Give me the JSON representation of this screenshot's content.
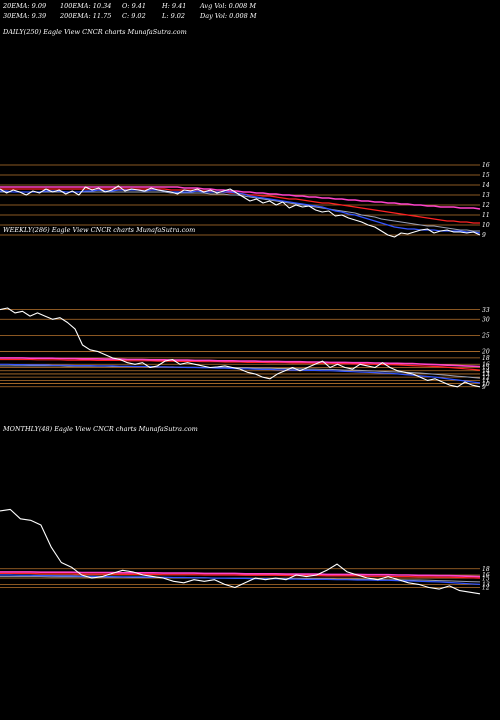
{
  "header": {
    "ema20": "20EMA: 9.09",
    "ema100": "100EMA: 10.34",
    "open": "O: 9.41",
    "high": "H: 9.41",
    "avg_vol": "Avg Vol: 0.008 M",
    "ema30": "30EMA: 9.39",
    "ema200": "200EMA: 11.75",
    "close": "C: 9.02",
    "low": "L: 9.02",
    "day_vol": "Day Vol: 0.008 M"
  },
  "colors": {
    "background": "#000000",
    "price": "#ffffff",
    "ema_short": "#3355ff",
    "ema_mid": "#9aa0b4",
    "ema_long": "#ff44cc",
    "ema_red": "#ff2222",
    "grid": "#b8742e"
  },
  "chart_data": [
    {
      "type": "line",
      "title": "DAILY(250) Eagle  View  CNCR charts MunafaSutra.com",
      "y_ticks": [
        "16",
        "15",
        "14",
        "13",
        "12",
        "11",
        "10",
        "9"
      ],
      "ylim": [
        8.5,
        16.5
      ],
      "series": [
        {
          "role": "price",
          "values": [
            13.6,
            13.2,
            13.5,
            13.3,
            13.0,
            13.4,
            13.2,
            13.6,
            13.3,
            13.5,
            13.1,
            13.4,
            13.0,
            13.8,
            13.5,
            13.7,
            13.3,
            13.5,
            13.9,
            13.4,
            13.6,
            13.5,
            13.4,
            13.7,
            13.5,
            13.4,
            13.3,
            13.1,
            13.5,
            13.4,
            13.6,
            13.3,
            13.5,
            13.2,
            13.4,
            13.6,
            13.2,
            12.8,
            12.4,
            12.6,
            12.2,
            12.4,
            12.0,
            12.3,
            11.7,
            12.0,
            11.8,
            11.9,
            11.5,
            11.3,
            11.4,
            10.9,
            11.0,
            10.7,
            10.5,
            10.3,
            10.0,
            9.8,
            9.4,
            9.0,
            8.8,
            9.2,
            9.1,
            9.3,
            9.5,
            9.6,
            9.2,
            9.4,
            9.5,
            9.3,
            9.3,
            9.2,
            9.3,
            9.0
          ]
        },
        {
          "role": "ema-short",
          "values": [
            13.4,
            13.4,
            13.3,
            13.3,
            13.3,
            13.3,
            13.3,
            13.4,
            13.4,
            13.4,
            13.3,
            13.3,
            13.3,
            13.4,
            13.4,
            13.5,
            13.4,
            13.4,
            13.5,
            13.5,
            13.5,
            13.5,
            13.4,
            13.5,
            13.5,
            13.4,
            13.3,
            13.3,
            13.3,
            13.3,
            13.4,
            13.3,
            13.3,
            13.3,
            13.3,
            13.3,
            13.2,
            13.1,
            12.9,
            12.8,
            12.7,
            12.6,
            12.5,
            12.4,
            12.3,
            12.2,
            12.1,
            12.0,
            11.9,
            11.8,
            11.6,
            11.4,
            11.3,
            11.1,
            11.0,
            10.8,
            10.6,
            10.4,
            10.2,
            10.0,
            9.8,
            9.7,
            9.6,
            9.6,
            9.5,
            9.5,
            9.5,
            9.4,
            9.4,
            9.4,
            9.4,
            9.3,
            9.3,
            9.2
          ]
        },
        {
          "role": "ema-mid",
          "values": [
            13.3,
            13.3,
            13.3,
            13.3,
            13.3,
            13.3,
            13.3,
            13.3,
            13.3,
            13.3,
            13.3,
            13.3,
            13.3,
            13.3,
            13.3,
            13.3,
            13.3,
            13.3,
            13.3,
            13.3,
            13.3,
            13.3,
            13.3,
            13.3,
            13.3,
            13.3,
            13.2,
            13.2,
            13.2,
            13.2,
            13.2,
            13.2,
            13.1,
            13.1,
            13.1,
            13.0,
            13.0,
            12.9,
            12.8,
            12.7,
            12.6,
            12.5,
            12.4,
            12.3,
            12.2,
            12.1,
            12.0,
            11.9,
            11.8,
            11.7,
            11.6,
            11.5,
            11.4,
            11.3,
            11.2,
            11.0,
            10.9,
            10.8,
            10.6,
            10.5,
            10.4,
            10.3,
            10.2,
            10.1,
            10.0,
            9.9,
            9.9,
            9.8,
            9.7,
            9.6,
            9.5,
            9.5,
            9.4,
            9.4
          ]
        },
        {
          "role": "ema-long",
          "values": [
            13.8,
            13.8,
            13.8,
            13.8,
            13.8,
            13.8,
            13.8,
            13.8,
            13.8,
            13.8,
            13.8,
            13.8,
            13.8,
            13.8,
            13.8,
            13.8,
            13.8,
            13.8,
            13.8,
            13.8,
            13.8,
            13.8,
            13.8,
            13.8,
            13.8,
            13.8,
            13.8,
            13.8,
            13.7,
            13.7,
            13.7,
            13.6,
            13.6,
            13.5,
            13.5,
            13.4,
            13.4,
            13.3,
            13.3,
            13.2,
            13.2,
            13.1,
            13.1,
            13.0,
            13.0,
            12.9,
            12.9,
            12.8,
            12.8,
            12.7,
            12.7,
            12.6,
            12.6,
            12.5,
            12.5,
            12.4,
            12.4,
            12.3,
            12.3,
            12.2,
            12.2,
            12.1,
            12.1,
            12.0,
            12.0,
            11.9,
            11.9,
            11.8,
            11.8,
            11.8,
            11.7,
            11.7,
            11.7,
            11.6
          ]
        },
        {
          "role": "ema-red",
          "values": [
            13.6,
            13.6,
            13.6,
            13.6,
            13.6,
            13.6,
            13.6,
            13.6,
            13.6,
            13.6,
            13.6,
            13.6,
            13.6,
            13.6,
            13.6,
            13.6,
            13.6,
            13.6,
            13.6,
            13.6,
            13.6,
            13.6,
            13.6,
            13.6,
            13.6,
            13.6,
            13.5,
            13.5,
            13.5,
            13.5,
            13.5,
            13.4,
            13.4,
            13.3,
            13.3,
            13.2,
            13.2,
            13.1,
            13.0,
            13.0,
            12.9,
            12.9,
            12.8,
            12.7,
            12.6,
            12.6,
            12.5,
            12.4,
            12.3,
            12.2,
            12.2,
            12.1,
            12.0,
            11.9,
            11.8,
            11.7,
            11.6,
            11.5,
            11.4,
            11.3,
            11.2,
            11.1,
            11.0,
            10.9,
            10.8,
            10.7,
            10.6,
            10.5,
            10.4,
            10.4,
            10.3,
            10.3,
            10.2,
            10.2
          ]
        }
      ]
    },
    {
      "type": "line",
      "title": "WEEKLY(286) Eagle  View  CNCR charts MunafaSutra.com",
      "y_ticks": [
        "33",
        "30",
        "25",
        "20",
        "18",
        "16",
        "15",
        "14",
        "13",
        "12",
        "11",
        "10",
        "9"
      ],
      "ylim": [
        8,
        36
      ],
      "series": [
        {
          "role": "price",
          "values": [
            33.0,
            33.5,
            32.0,
            32.5,
            31.0,
            32.0,
            31.0,
            30.0,
            30.5,
            29.0,
            27.0,
            22.0,
            20.5,
            20.0,
            19.0,
            18.0,
            17.5,
            16.5,
            16.0,
            16.5,
            15.0,
            15.5,
            17.0,
            17.5,
            16.0,
            16.5,
            16.0,
            15.5,
            15.0,
            15.2,
            15.5,
            15.0,
            14.5,
            13.5,
            13.0,
            12.0,
            11.5,
            13.0,
            14.0,
            15.0,
            14.0,
            15.0,
            16.0,
            17.0,
            15.0,
            16.0,
            15.0,
            14.5,
            16.0,
            15.5,
            15.0,
            16.5,
            15.0,
            14.0,
            13.5,
            13.0,
            12.0,
            11.0,
            11.5,
            10.5,
            9.5,
            9.0,
            10.5,
            9.5,
            9.0
          ]
        },
        {
          "role": "ema-short",
          "values": [
            16.0,
            16.0,
            15.9,
            15.9,
            15.8,
            15.8,
            15.8,
            15.7,
            15.7,
            15.7,
            15.6,
            15.6,
            15.6,
            15.5,
            15.5,
            15.5,
            15.4,
            15.4,
            15.3,
            15.3,
            15.3,
            15.2,
            15.2,
            15.1,
            15.1,
            15.0,
            15.0,
            14.9,
            14.9,
            14.8,
            14.8,
            14.7,
            14.6,
            14.6,
            14.5,
            14.4,
            14.4,
            14.3,
            14.3,
            14.2,
            14.2,
            14.1,
            14.1,
            14.0,
            14.0,
            13.9,
            13.8,
            13.7,
            13.6,
            13.5,
            13.4,
            13.3,
            13.2,
            13.0,
            12.8,
            12.6,
            12.4,
            12.2,
            12.0,
            11.7,
            11.4,
            11.1,
            10.8,
            10.5,
            10.2
          ]
        },
        {
          "role": "ema-mid",
          "values": [
            15.5,
            15.5,
            15.5,
            15.5,
            15.5,
            15.5,
            15.5,
            15.5,
            15.5,
            15.4,
            15.4,
            15.4,
            15.4,
            15.4,
            15.4,
            15.3,
            15.3,
            15.3,
            15.3,
            15.3,
            15.2,
            15.2,
            15.2,
            15.2,
            15.1,
            15.1,
            15.1,
            15.0,
            15.0,
            15.0,
            15.0,
            14.9,
            14.9,
            14.9,
            14.8,
            14.8,
            14.8,
            14.7,
            14.7,
            14.6,
            14.6,
            14.5,
            14.5,
            14.4,
            14.4,
            14.3,
            14.2,
            14.2,
            14.1,
            14.0,
            13.9,
            13.8,
            13.7,
            13.6,
            13.5,
            13.4,
            13.3,
            13.1,
            12.9,
            12.7,
            12.5,
            12.3,
            12.1,
            11.9,
            11.7
          ]
        },
        {
          "role": "ema-long",
          "values": [
            18.0,
            18.0,
            18.0,
            18.0,
            17.9,
            17.9,
            17.9,
            17.9,
            17.8,
            17.8,
            17.8,
            17.7,
            17.7,
            17.7,
            17.6,
            17.6,
            17.6,
            17.5,
            17.5,
            17.5,
            17.4,
            17.4,
            17.4,
            17.3,
            17.3,
            17.3,
            17.2,
            17.2,
            17.2,
            17.1,
            17.1,
            17.1,
            17.0,
            17.0,
            17.0,
            16.9,
            16.9,
            16.9,
            16.8,
            16.8,
            16.8,
            16.7,
            16.7,
            16.7,
            16.6,
            16.6,
            16.6,
            16.5,
            16.5,
            16.5,
            16.4,
            16.4,
            16.3,
            16.3,
            16.2,
            16.2,
            16.1,
            16.0,
            15.9,
            15.8,
            15.7,
            15.6,
            15.5,
            15.4,
            15.3
          ]
        },
        {
          "role": "ema-red",
          "values": [
            17.5,
            17.5,
            17.5,
            17.5,
            17.5,
            17.4,
            17.4,
            17.4,
            17.4,
            17.3,
            17.3,
            17.3,
            17.3,
            17.2,
            17.2,
            17.2,
            17.2,
            17.1,
            17.1,
            17.1,
            17.1,
            17.0,
            17.0,
            17.0,
            16.9,
            16.9,
            16.9,
            16.8,
            16.8,
            16.8,
            16.7,
            16.7,
            16.7,
            16.6,
            16.6,
            16.6,
            16.5,
            16.5,
            16.5,
            16.4,
            16.4,
            16.4,
            16.3,
            16.3,
            16.3,
            16.2,
            16.2,
            16.1,
            16.1,
            16.0,
            16.0,
            15.9,
            15.9,
            15.8,
            15.7,
            15.6,
            15.5,
            15.4,
            15.3,
            15.2,
            15.0,
            14.8,
            14.6,
            14.4,
            14.2
          ]
        }
      ]
    },
    {
      "type": "line",
      "title": "MONTHLY(48) Eagle  View  CNCR charts MunafaSutra.com",
      "y_ticks": [
        "18",
        "16",
        "15",
        "13",
        "12"
      ],
      "ylim": [
        8,
        40
      ],
      "series": [
        {
          "role": "price",
          "values": [
            36.5,
            37.0,
            34.0,
            33.5,
            32.0,
            25.0,
            20.0,
            18.5,
            16.0,
            15.0,
            15.5,
            16.5,
            17.5,
            17.0,
            16.0,
            15.5,
            15.0,
            14.0,
            13.5,
            14.5,
            14.0,
            14.5,
            13.0,
            12.0,
            13.5,
            15.0,
            14.5,
            15.0,
            14.5,
            16.0,
            15.5,
            16.0,
            17.5,
            19.5,
            17.0,
            16.0,
            15.0,
            14.5,
            15.5,
            14.5,
            13.5,
            13.0,
            12.0,
            11.5,
            12.5,
            11.0,
            10.5,
            10.0
          ]
        },
        {
          "role": "ema-short",
          "values": [
            16.0,
            16.0,
            15.9,
            15.9,
            15.8,
            15.8,
            15.7,
            15.7,
            15.6,
            15.6,
            15.5,
            15.5,
            15.4,
            15.4,
            15.4,
            15.3,
            15.3,
            15.2,
            15.2,
            15.1,
            15.1,
            15.0,
            15.0,
            14.9,
            14.9,
            14.8,
            14.8,
            14.8,
            14.7,
            14.7,
            14.6,
            14.6,
            14.6,
            14.5,
            14.5,
            14.4,
            14.4,
            14.3,
            14.3,
            14.2,
            14.1,
            14.0,
            13.9,
            13.8,
            13.6,
            13.4,
            13.2,
            13.0
          ]
        },
        {
          "role": "ema-mid",
          "values": [
            15.5,
            15.5,
            15.5,
            15.5,
            15.5,
            15.4,
            15.4,
            15.4,
            15.4,
            15.3,
            15.3,
            15.3,
            15.3,
            15.2,
            15.2,
            15.2,
            15.2,
            15.1,
            15.1,
            15.1,
            15.1,
            15.0,
            15.0,
            15.0,
            15.0,
            14.9,
            14.9,
            14.9,
            14.9,
            14.8,
            14.8,
            14.8,
            14.8,
            14.7,
            14.7,
            14.7,
            14.6,
            14.6,
            14.5,
            14.5,
            14.4,
            14.4,
            14.3,
            14.2,
            14.1,
            14.0,
            13.9,
            13.8
          ]
        },
        {
          "role": "ema-long",
          "values": [
            17.0,
            17.0,
            17.0,
            17.0,
            16.9,
            16.9,
            16.9,
            16.9,
            16.8,
            16.8,
            16.8,
            16.8,
            16.7,
            16.7,
            16.7,
            16.7,
            16.6,
            16.6,
            16.6,
            16.6,
            16.5,
            16.5,
            16.5,
            16.5,
            16.4,
            16.4,
            16.4,
            16.4,
            16.3,
            16.3,
            16.3,
            16.3,
            16.2,
            16.2,
            16.2,
            16.2,
            16.1,
            16.1,
            16.1,
            16.0,
            16.0,
            15.9,
            15.9,
            15.8,
            15.8,
            15.7,
            15.6,
            15.5
          ]
        },
        {
          "role": "ema-red",
          "values": [
            16.5,
            16.5,
            16.5,
            16.5,
            16.4,
            16.4,
            16.4,
            16.4,
            16.3,
            16.3,
            16.3,
            16.3,
            16.2,
            16.2,
            16.2,
            16.2,
            16.1,
            16.1,
            16.1,
            16.1,
            16.0,
            16.0,
            16.0,
            16.0,
            15.9,
            15.9,
            15.9,
            15.9,
            15.8,
            15.8,
            15.8,
            15.8,
            15.7,
            15.7,
            15.7,
            15.7,
            15.6,
            15.6,
            15.6,
            15.5,
            15.5,
            15.4,
            15.4,
            15.3,
            15.3,
            15.2,
            15.1,
            15.0
          ]
        }
      ]
    }
  ]
}
